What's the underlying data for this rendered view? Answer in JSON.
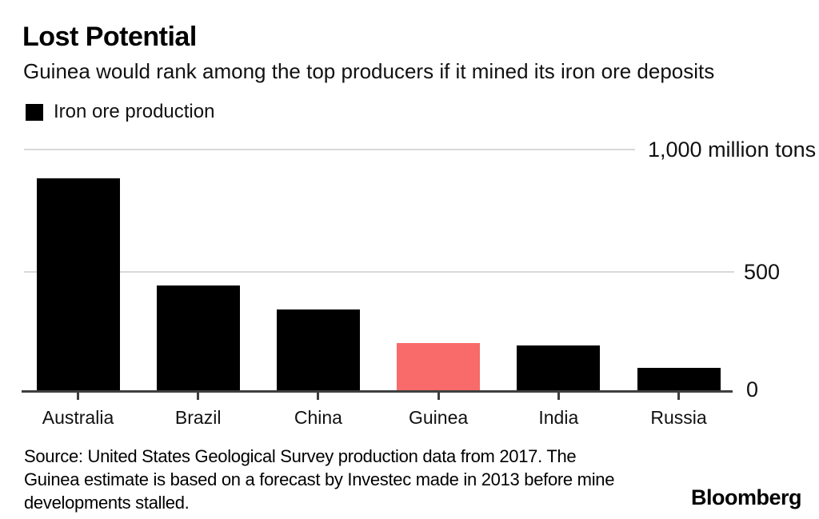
{
  "header": {
    "title": "Lost Potential",
    "subtitle": "Guinea would rank among the top producers if it mined its iron ore deposits"
  },
  "legend": {
    "label": "Iron ore production",
    "swatch_color": "#000000"
  },
  "chart_data": {
    "type": "bar",
    "title": "Lost Potential",
    "subtitle": "Guinea would rank among the top producers if it mined its iron ore deposits",
    "categories": [
      "Australia",
      "Brazil",
      "China",
      "Guinea",
      "India",
      "Russia"
    ],
    "values": [
      880,
      440,
      340,
      200,
      190,
      100
    ],
    "unit": "million tons",
    "bar_colors": [
      "#000000",
      "#000000",
      "#000000",
      "#f96a6a",
      "#000000",
      "#000000"
    ],
    "default_color": "#000000",
    "highlight_category": "Guinea",
    "highlight_color": "#f96a6a",
    "xlabel": "",
    "ylabel": "",
    "ylim": [
      0,
      1000
    ],
    "yticks": [
      {
        "value": 1000,
        "label": "1,000 million tons"
      },
      {
        "value": 500,
        "label": "500"
      },
      {
        "value": 0,
        "label": "0"
      }
    ],
    "grid": "horizontal",
    "gridline_color": "#d9d9d9",
    "axis_color": "#3f3f3f",
    "legend_entries": [
      "Iron ore production"
    ],
    "legend_position": "top-left"
  },
  "footer": {
    "source_lines": [
      "Source: United States Geological Survey production data from 2017. The",
      "Guinea estimate is based on a forecast by Investec made in 2013 before mine",
      "developments stalled."
    ],
    "brand": "Bloomberg"
  }
}
